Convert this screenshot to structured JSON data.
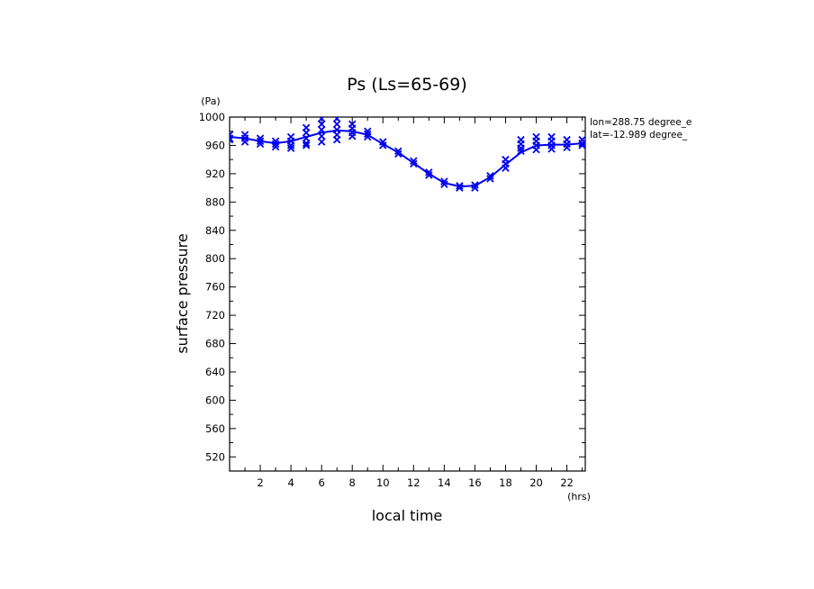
{
  "chart_data": {
    "type": "line",
    "title": "Ps (Ls=65-69)",
    "xlabel": "local time",
    "ylabel": "surface pressure",
    "x_unit": "(hrs)",
    "y_unit": "(Pa)",
    "xlim": [
      0,
      23.2
    ],
    "ylim": [
      500,
      1000
    ],
    "x_ticks": [
      "2",
      "4",
      "6",
      "8",
      "10",
      "12",
      "14",
      "16",
      "18",
      "20",
      "22"
    ],
    "y_ticks": [
      "520",
      "560",
      "600",
      "640",
      "680",
      "720",
      "760",
      "800",
      "840",
      "880",
      "920",
      "960",
      "1000"
    ],
    "grid": false,
    "annotations": [
      "lon=288.75 degree_e",
      "lat=-12.989 degree_"
    ],
    "colors": {
      "series": "#0000ee",
      "axes": "#000000"
    },
    "series": [
      {
        "style": "line",
        "x": [
          0,
          1,
          2,
          3,
          4,
          5,
          6,
          7,
          8,
          9,
          10,
          11,
          12,
          13,
          14,
          15,
          16,
          17,
          18,
          19,
          20,
          21,
          22,
          23
        ],
        "y": [
          972,
          970,
          966,
          963,
          966,
          972,
          978,
          981,
          980,
          975,
          962,
          950,
          935,
          920,
          907,
          902,
          903,
          915,
          933,
          950,
          960,
          961,
          961,
          963
        ]
      },
      {
        "style": "markers",
        "marker": "x",
        "points": [
          [
            0,
            975
          ],
          [
            0,
            970
          ],
          [
            0,
            968
          ],
          [
            1,
            975
          ],
          [
            1,
            970
          ],
          [
            1,
            965
          ],
          [
            2,
            970
          ],
          [
            2,
            966
          ],
          [
            2,
            962
          ],
          [
            3,
            966
          ],
          [
            3,
            962
          ],
          [
            3,
            958
          ],
          [
            4,
            972
          ],
          [
            4,
            966
          ],
          [
            4,
            960
          ],
          [
            4,
            956
          ],
          [
            5,
            985
          ],
          [
            5,
            978
          ],
          [
            5,
            970
          ],
          [
            5,
            963
          ],
          [
            5,
            960
          ],
          [
            6,
            998
          ],
          [
            6,
            990
          ],
          [
            6,
            982
          ],
          [
            6,
            973
          ],
          [
            6,
            965
          ],
          [
            7,
            998
          ],
          [
            7,
            990
          ],
          [
            7,
            982
          ],
          [
            7,
            975
          ],
          [
            7,
            968
          ],
          [
            8,
            990
          ],
          [
            8,
            984
          ],
          [
            8,
            978
          ],
          [
            8,
            973
          ],
          [
            9,
            980
          ],
          [
            9,
            976
          ],
          [
            9,
            972
          ],
          [
            10,
            965
          ],
          [
            10,
            960
          ],
          [
            11,
            952
          ],
          [
            11,
            948
          ],
          [
            12,
            938
          ],
          [
            12,
            934
          ],
          [
            13,
            922
          ],
          [
            13,
            918
          ],
          [
            14,
            909
          ],
          [
            14,
            905
          ],
          [
            15,
            903
          ],
          [
            15,
            900
          ],
          [
            16,
            904
          ],
          [
            16,
            900
          ],
          [
            17,
            917
          ],
          [
            17,
            913
          ],
          [
            18,
            940
          ],
          [
            18,
            934
          ],
          [
            18,
            928
          ],
          [
            19,
            968
          ],
          [
            19,
            962
          ],
          [
            19,
            956
          ],
          [
            19,
            952
          ],
          [
            20,
            972
          ],
          [
            20,
            966
          ],
          [
            20,
            960
          ],
          [
            20,
            954
          ],
          [
            21,
            972
          ],
          [
            21,
            966
          ],
          [
            21,
            960
          ],
          [
            21,
            955
          ],
          [
            22,
            968
          ],
          [
            22,
            962
          ],
          [
            22,
            957
          ],
          [
            23,
            968
          ],
          [
            23,
            963
          ],
          [
            23,
            960
          ]
        ]
      }
    ]
  }
}
